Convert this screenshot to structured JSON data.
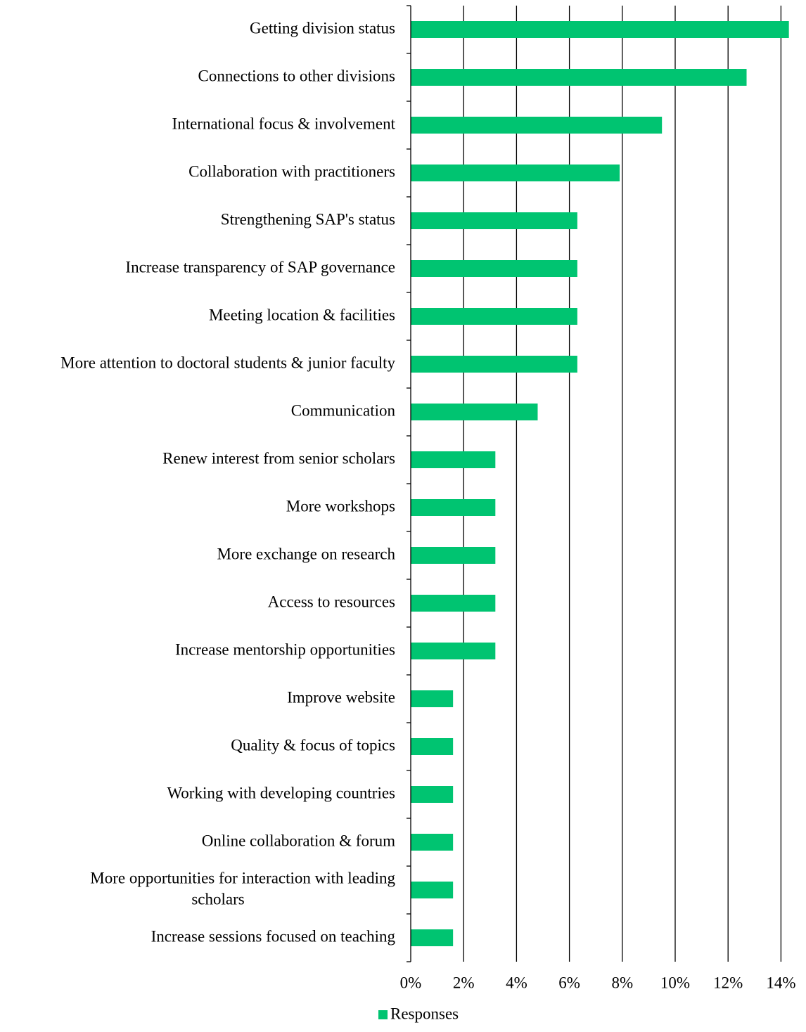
{
  "chart_data": {
    "type": "bar",
    "orientation": "horizontal",
    "categories": [
      "Getting division status",
      "Connections to other divisions",
      "International focus & involvement",
      "Collaboration with practitioners",
      "Strengthening SAP's status",
      "Increase transparency of SAP governance",
      "Meeting location & facilities",
      "More attention to doctoral students & junior faculty",
      "Communication",
      "Renew interest from senior scholars",
      "More workshops",
      "More exchange on research",
      "Access to resources",
      "Increase mentorship opportunities",
      "Improve website",
      "Quality & focus of topics",
      "Working with developing countries",
      "Online collaboration & forum",
      "More opportunities for interaction with leading scholars",
      "Increase sessions focused on teaching"
    ],
    "category_lines": [
      [
        "Getting division status"
      ],
      [
        "Connections to other divisions"
      ],
      [
        "International focus & involvement"
      ],
      [
        "Collaboration with practitioners"
      ],
      [
        "Strengthening SAP's status"
      ],
      [
        "Increase transparency of SAP governance"
      ],
      [
        "Meeting location & facilities"
      ],
      [
        "More attention to doctoral students & junior faculty"
      ],
      [
        "Communication"
      ],
      [
        "Renew interest from senior scholars"
      ],
      [
        "More workshops"
      ],
      [
        "More exchange on research"
      ],
      [
        "Access to resources"
      ],
      [
        "Increase mentorship opportunities"
      ],
      [
        "Improve website"
      ],
      [
        "Quality & focus of topics"
      ],
      [
        "Working with developing countries"
      ],
      [
        "Online collaboration & forum"
      ],
      [
        "More opportunities for interaction with leading",
        "scholars"
      ],
      [
        "Increase sessions focused on teaching"
      ]
    ],
    "series": [
      {
        "name": "Responses",
        "color": "#00C471",
        "values": [
          14.3,
          12.7,
          9.5,
          7.9,
          6.3,
          6.3,
          6.3,
          6.3,
          4.8,
          3.2,
          3.2,
          3.2,
          3.2,
          3.2,
          1.6,
          1.6,
          1.6,
          1.6,
          1.6,
          1.6
        ]
      }
    ],
    "xlim": [
      0,
      14
    ],
    "xticks": [
      0,
      2,
      4,
      6,
      8,
      10,
      12,
      14
    ],
    "xtick_labels": [
      "0%",
      "2%",
      "4%",
      "6%",
      "8%",
      "10%",
      "12%",
      "14%"
    ],
    "grid": "vertical",
    "legend": {
      "position": "bottom",
      "entries": [
        "Responses"
      ]
    },
    "title": "",
    "xlabel": "",
    "ylabel": ""
  }
}
